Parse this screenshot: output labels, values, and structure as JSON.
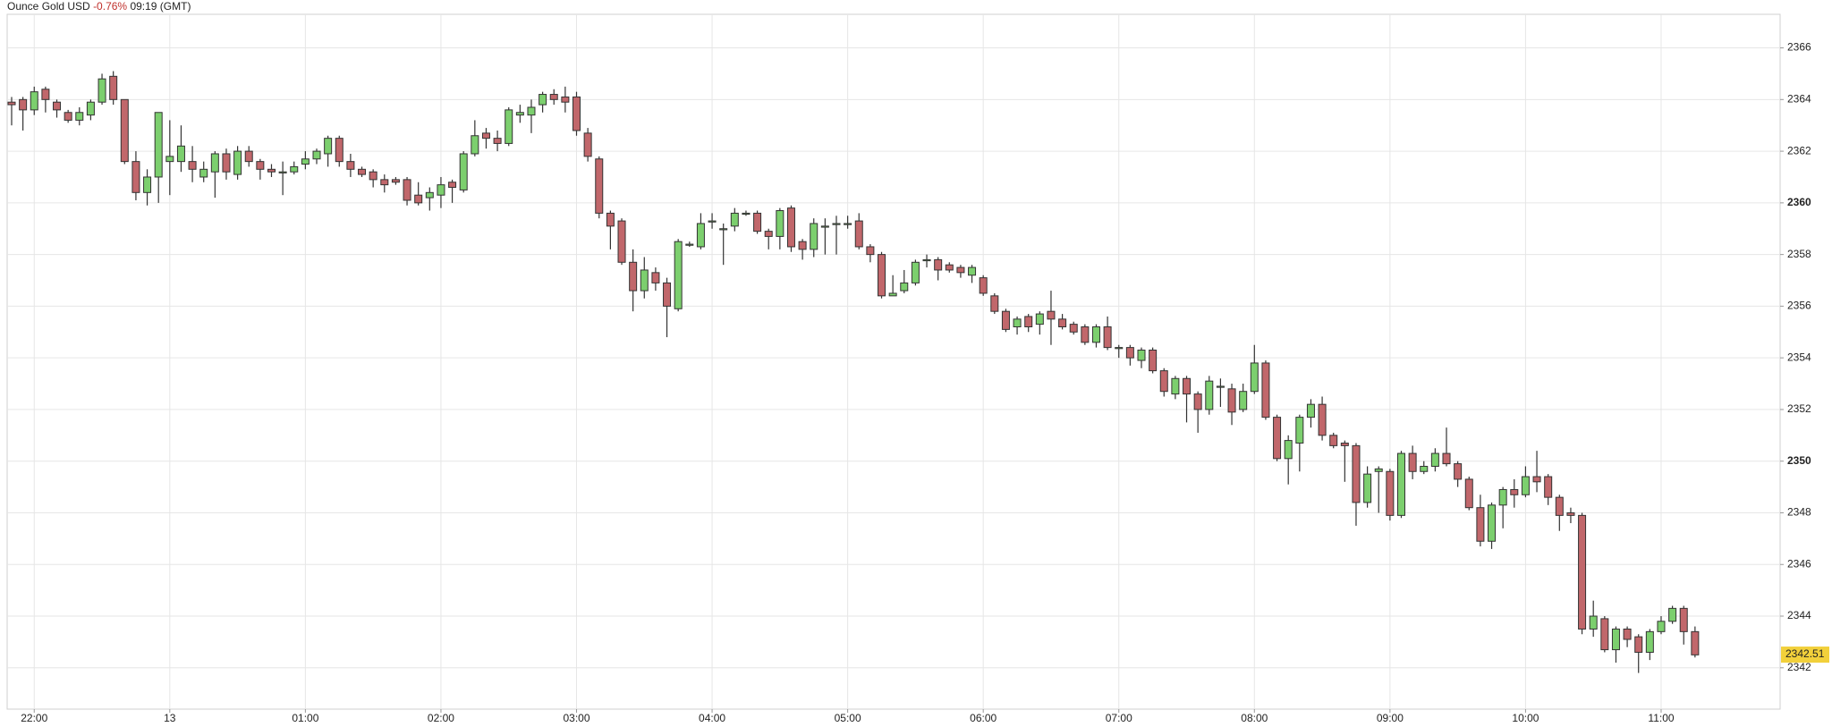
{
  "chart_data": {
    "type": "candlestick",
    "title": "Ounce Gold USD",
    "change": "-0.76%",
    "time": "09:19 (GMT)",
    "x": [
      "21:50",
      "21:55",
      "22:00",
      "22:05",
      "22:10",
      "22:15",
      "22:20",
      "22:25",
      "22:30",
      "22:35",
      "22:40",
      "22:45",
      "22:50",
      "22:55",
      "00:00",
      "00:05",
      "00:10",
      "00:15",
      "00:20",
      "00:25",
      "00:30",
      "00:35",
      "00:40",
      "00:45",
      "00:50",
      "00:55",
      "01:00",
      "01:05",
      "01:10",
      "01:15",
      "01:20",
      "01:25",
      "01:30",
      "01:35",
      "01:40",
      "01:45",
      "01:50",
      "01:55",
      "02:00",
      "02:05",
      "02:10",
      "02:15",
      "02:20",
      "02:25",
      "02:30",
      "02:35",
      "02:40",
      "02:45",
      "02:50",
      "02:55",
      "03:00",
      "03:05",
      "03:10",
      "03:15",
      "03:20",
      "03:25",
      "03:30",
      "03:35",
      "03:40",
      "03:45",
      "03:50",
      "03:55",
      "04:00",
      "04:05",
      "04:10",
      "04:15",
      "04:20",
      "04:25",
      "04:30",
      "04:35",
      "04:40",
      "04:45",
      "04:50",
      "04:55",
      "05:00",
      "05:05",
      "05:10",
      "05:15",
      "05:20",
      "05:25",
      "05:30",
      "05:35",
      "05:40",
      "05:45",
      "05:50",
      "05:55",
      "06:00",
      "06:05",
      "06:10",
      "06:15",
      "06:20",
      "06:25",
      "06:30",
      "06:35",
      "06:40",
      "06:45",
      "06:50",
      "06:55",
      "07:00",
      "07:05",
      "07:10",
      "07:15",
      "07:20",
      "07:25",
      "07:30",
      "07:35",
      "07:40",
      "07:45",
      "07:50",
      "07:55",
      "08:00",
      "08:05",
      "08:10",
      "08:15",
      "08:20",
      "08:25",
      "08:30",
      "08:35",
      "08:40",
      "08:45",
      "08:50",
      "08:55",
      "09:00",
      "09:05",
      "09:10",
      "09:15",
      "09:20",
      "09:25",
      "09:30",
      "09:35",
      "09:40",
      "09:45",
      "09:50",
      "09:55",
      "10:00",
      "10:05",
      "10:10",
      "10:15",
      "10:20",
      "10:25",
      "10:30",
      "10:35",
      "10:40",
      "10:45",
      "10:50",
      "10:55",
      "11:00",
      "11:05",
      "11:10",
      "11:15"
    ],
    "open": [
      2363.9,
      2364.0,
      2363.6,
      2364.4,
      2363.9,
      2363.5,
      2363.2,
      2363.4,
      2363.9,
      2364.9,
      2364.0,
      2361.6,
      2360.4,
      2361.0,
      2361.6,
      2361.6,
      2361.6,
      2361.0,
      2361.2,
      2361.9,
      2361.1,
      2362.0,
      2361.6,
      2361.3,
      2361.2,
      2361.2,
      2361.5,
      2361.7,
      2361.9,
      2362.5,
      2361.6,
      2361.3,
      2361.2,
      2360.9,
      2360.9,
      2360.9,
      2360.3,
      2360.2,
      2360.3,
      2360.8,
      2360.5,
      2361.9,
      2362.7,
      2362.5,
      2362.3,
      2363.4,
      2363.4,
      2363.8,
      2364.2,
      2364.1,
      2364.1,
      2362.7,
      2361.7,
      2359.6,
      2359.3,
      2357.7,
      2356.6,
      2357.3,
      2356.9,
      2355.9,
      2358.4,
      2358.3,
      2359.3,
      2359.0,
      2359.1,
      2359.6,
      2359.6,
      2358.9,
      2358.7,
      2359.8,
      2358.5,
      2358.2,
      2359.1,
      2359.2,
      2359.2,
      2359.3,
      2358.3,
      2358.0,
      2356.4,
      2356.6,
      2356.9,
      2357.8,
      2357.8,
      2357.6,
      2357.5,
      2357.2,
      2357.1,
      2356.4,
      2355.8,
      2355.2,
      2355.6,
      2355.3,
      2355.8,
      2355.5,
      2355.3,
      2355.2,
      2354.6,
      2355.2,
      2354.4,
      2354.4,
      2353.9,
      2354.3,
      2353.5,
      2352.6,
      2353.2,
      2352.6,
      2352.0,
      2352.9,
      2352.8,
      2352.0,
      2352.7,
      2353.8,
      2351.7,
      2350.1,
      2350.7,
      2351.7,
      2352.2,
      2351.0,
      2350.7,
      2350.6,
      2348.4,
      2349.6,
      2349.6,
      2347.9,
      2350.3,
      2349.6,
      2349.8,
      2350.3,
      2349.9,
      2349.3,
      2348.2,
      2346.9,
      2348.3,
      2348.9,
      2348.7,
      2349.4,
      2349.4,
      2348.6,
      2348.0,
      2347.9,
      2343.5,
      2343.9,
      2342.7,
      2343.5,
      2343.2,
      2342.6,
      2343.4,
      2343.8,
      2344.3,
      2343.4
    ],
    "high": [
      2364.1,
      2364.1,
      2364.5,
      2364.5,
      2364.0,
      2363.6,
      2363.7,
      2364.0,
      2365.0,
      2365.1,
      2364.0,
      2362.0,
      2361.3,
      2363.5,
      2363.2,
      2363.0,
      2362.2,
      2361.6,
      2362.0,
      2362.1,
      2362.2,
      2362.2,
      2361.7,
      2361.5,
      2361.6,
      2361.6,
      2362.0,
      2362.1,
      2362.6,
      2362.6,
      2361.9,
      2361.4,
      2361.3,
      2361.1,
      2361.0,
      2361.0,
      2360.8,
      2360.6,
      2361.0,
      2360.9,
      2362.0,
      2363.2,
      2362.9,
      2362.8,
      2363.7,
      2363.8,
      2364.0,
      2364.3,
      2364.4,
      2364.5,
      2364.3,
      2362.9,
      2361.8,
      2359.7,
      2359.4,
      2358.2,
      2357.9,
      2357.5,
      2357.1,
      2358.6,
      2358.5,
      2359.6,
      2359.6,
      2359.2,
      2359.8,
      2359.7,
      2359.7,
      2359.0,
      2359.8,
      2359.9,
      2358.6,
      2359.4,
      2359.4,
      2359.5,
      2359.5,
      2359.6,
      2358.4,
      2358.1,
      2357.2,
      2357.4,
      2357.8,
      2358.0,
      2357.9,
      2357.7,
      2357.6,
      2357.6,
      2357.2,
      2356.5,
      2355.9,
      2355.6,
      2355.7,
      2355.8,
      2356.6,
      2355.7,
      2355.4,
      2355.3,
      2355.3,
      2355.6,
      2354.5,
      2354.5,
      2354.4,
      2354.4,
      2353.6,
      2353.3,
      2353.3,
      2352.7,
      2353.3,
      2353.2,
      2353.0,
      2353.0,
      2354.5,
      2353.9,
      2351.8,
      2351.0,
      2351.8,
      2352.4,
      2352.5,
      2351.1,
      2350.8,
      2350.7,
      2349.8,
      2349.8,
      2349.7,
      2350.4,
      2350.6,
      2350.0,
      2350.5,
      2351.3,
      2350.0,
      2349.4,
      2348.7,
      2348.4,
      2349.0,
      2349.3,
      2349.8,
      2350.4,
      2349.5,
      2348.7,
      2348.2,
      2348.0,
      2344.6,
      2344.0,
      2343.6,
      2343.6,
      2343.3,
      2343.5,
      2344.0,
      2344.4,
      2344.4,
      2343.6
    ],
    "low": [
      2363.0,
      2362.8,
      2363.4,
      2363.5,
      2363.3,
      2363.1,
      2363.0,
      2363.2,
      2363.8,
      2363.8,
      2361.5,
      2360.1,
      2359.9,
      2360.0,
      2360.3,
      2361.2,
      2360.8,
      2360.8,
      2360.2,
      2360.9,
      2360.9,
      2361.4,
      2360.9,
      2361.0,
      2360.3,
      2361.1,
      2361.3,
      2361.5,
      2361.4,
      2361.4,
      2361.0,
      2361.0,
      2360.6,
      2360.4,
      2360.7,
      2359.9,
      2359.9,
      2359.7,
      2359.8,
      2360.0,
      2360.4,
      2361.8,
      2362.1,
      2362.0,
      2362.2,
      2363.1,
      2362.7,
      2363.5,
      2363.8,
      2363.5,
      2362.6,
      2361.6,
      2359.4,
      2358.2,
      2357.6,
      2355.8,
      2356.3,
      2356.6,
      2354.8,
      2355.8,
      2358.3,
      2358.2,
      2359.0,
      2357.6,
      2358.9,
      2359.5,
      2358.8,
      2358.2,
      2358.2,
      2358.1,
      2357.8,
      2357.9,
      2358.0,
      2358.0,
      2359.0,
      2358.2,
      2357.7,
      2356.3,
      2356.4,
      2356.5,
      2356.8,
      2357.5,
      2357.0,
      2357.3,
      2357.1,
      2356.9,
      2356.4,
      2355.7,
      2355.0,
      2354.9,
      2355.0,
      2354.9,
      2354.5,
      2355.1,
      2354.9,
      2354.5,
      2354.4,
      2354.3,
      2354.0,
      2353.7,
      2353.6,
      2353.4,
      2352.5,
      2352.4,
      2351.5,
      2351.1,
      2351.8,
      2352.1,
      2351.4,
      2351.9,
      2352.6,
      2351.6,
      2350.0,
      2349.1,
      2349.6,
      2351.3,
      2350.8,
      2350.5,
      2349.2,
      2347.5,
      2348.2,
      2348.0,
      2347.7,
      2347.8,
      2349.3,
      2349.5,
      2349.6,
      2349.8,
      2349.0,
      2348.1,
      2346.7,
      2346.6,
      2347.4,
      2348.2,
      2348.6,
      2348.8,
      2348.3,
      2347.3,
      2347.6,
      2343.3,
      2343.2,
      2342.6,
      2342.2,
      2342.8,
      2341.8,
      2342.3,
      2343.3,
      2343.7,
      2342.9,
      2342.4
    ],
    "close": [
      2363.8,
      2363.6,
      2364.3,
      2364.0,
      2363.6,
      2363.2,
      2363.5,
      2363.9,
      2364.8,
      2364.0,
      2361.6,
      2360.4,
      2361.0,
      2363.5,
      2361.8,
      2362.2,
      2361.3,
      2361.3,
      2361.9,
      2361.2,
      2362.0,
      2361.6,
      2361.3,
      2361.2,
      2361.2,
      2361.4,
      2361.7,
      2362.0,
      2362.5,
      2361.6,
      2361.3,
      2361.1,
      2360.9,
      2360.7,
      2360.8,
      2360.1,
      2360.0,
      2360.4,
      2360.7,
      2360.6,
      2361.9,
      2362.6,
      2362.5,
      2362.3,
      2363.6,
      2363.5,
      2363.7,
      2364.2,
      2364.0,
      2363.9,
      2362.8,
      2361.8,
      2359.6,
      2359.1,
      2357.7,
      2356.6,
      2357.4,
      2356.9,
      2356.0,
      2358.5,
      2358.4,
      2359.2,
      2359.3,
      2359.0,
      2359.6,
      2359.6,
      2358.9,
      2358.7,
      2359.7,
      2358.3,
      2358.2,
      2359.2,
      2359.1,
      2359.2,
      2359.2,
      2358.3,
      2358.0,
      2356.4,
      2356.5,
      2356.9,
      2357.7,
      2357.8,
      2357.4,
      2357.4,
      2357.3,
      2357.5,
      2356.5,
      2355.8,
      2355.1,
      2355.5,
      2355.2,
      2355.7,
      2355.5,
      2355.2,
      2355.0,
      2354.6,
      2355.2,
      2354.4,
      2354.4,
      2354.0,
      2354.3,
      2353.5,
      2352.7,
      2353.2,
      2352.6,
      2352.0,
      2353.1,
      2352.9,
      2351.9,
      2352.7,
      2353.8,
      2351.7,
      2350.1,
      2350.8,
      2351.7,
      2352.2,
      2351.0,
      2350.6,
      2350.6,
      2348.4,
      2349.5,
      2349.7,
      2347.9,
      2350.3,
      2349.6,
      2349.8,
      2350.3,
      2349.9,
      2349.3,
      2348.2,
      2346.9,
      2348.3,
      2348.9,
      2348.7,
      2349.4,
      2349.2,
      2348.6,
      2347.9,
      2347.9,
      2343.5,
      2344.0,
      2342.7,
      2343.5,
      2343.1,
      2342.6,
      2343.4,
      2343.8,
      2344.3,
      2343.4,
      2342.5
    ],
    "up_color": "#7ccf6e",
    "down_color": "#c1676b",
    "last_price": 2342.51,
    "ylim": [
      2340.4,
      2367.3
    ],
    "yticks": [
      2342,
      2344,
      2346,
      2348,
      2350,
      2352,
      2354,
      2356,
      2358,
      2360,
      2362,
      2364,
      2366
    ],
    "xticks": [
      "22:00",
      {
        "value": "00:00",
        "label": "13"
      },
      "01:00",
      "02:00",
      "03:00",
      "04:00",
      "05:00",
      "06:00",
      "07:00",
      "08:00",
      "09:00",
      "10:00",
      "11:00"
    ],
    "grid": true
  }
}
